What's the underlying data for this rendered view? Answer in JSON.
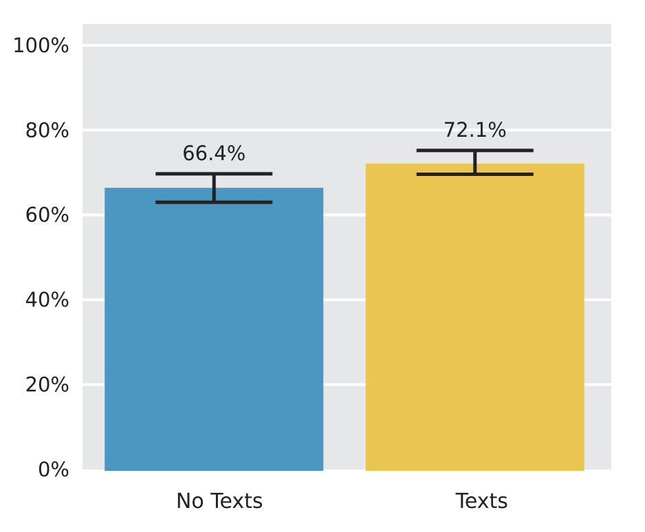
{
  "chart_data": {
    "type": "bar",
    "categories": [
      "No Texts",
      "Texts"
    ],
    "series": [
      {
        "values": [
          66.4,
          72.1
        ],
        "error_low": [
          63.0,
          69.6
        ],
        "error_high": [
          69.7,
          75.2
        ],
        "colors": [
          "#4a97c2",
          "#ebc552"
        ]
      }
    ],
    "data_labels": [
      "66.4%",
      "72.1%"
    ],
    "yticks": [
      "0%",
      "20%",
      "40%",
      "60%",
      "80%",
      "100%"
    ],
    "ytick_values": [
      0,
      20,
      40,
      60,
      80,
      100
    ],
    "ylim": [
      0,
      105
    ],
    "grid": true,
    "background": "#e6e7e9",
    "error_bar_color": "#222222",
    "title": "",
    "xlabel": "",
    "ylabel": ""
  }
}
